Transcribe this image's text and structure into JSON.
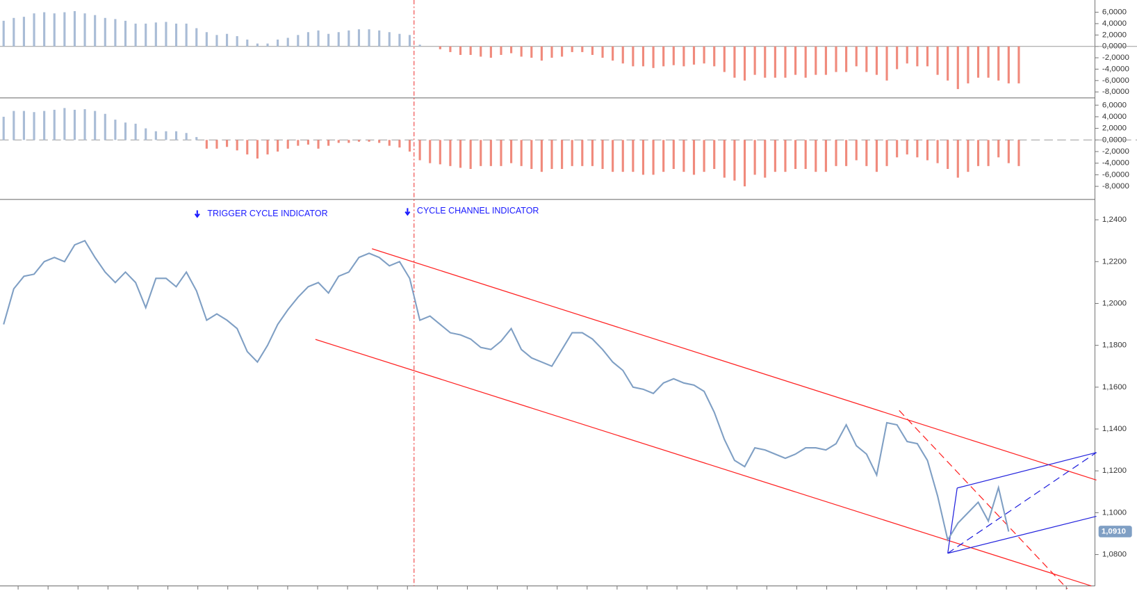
{
  "chart_data": [
    {
      "type": "bar",
      "color": "#a9bcd6",
      "negative_color": "#f08a7c",
      "zero_line": "solid",
      "ylim": [
        -9.05,
        8.15
      ],
      "yticks": [
        {
          "value": 6,
          "label": "6,0000"
        },
        {
          "value": 4,
          "label": "4,0000"
        },
        {
          "value": 2,
          "label": "2,0000"
        },
        {
          "value": 0,
          "label": "0,0000"
        },
        {
          "value": -2,
          "label": "-2,0000"
        },
        {
          "value": -4,
          "label": "-4,0000"
        },
        {
          "value": -6,
          "label": "-6,0000"
        },
        {
          "value": -8,
          "label": "-8,0000"
        }
      ],
      "values": [
        4.5,
        5,
        5.2,
        5.8,
        6,
        5.8,
        6,
        6.2,
        5.8,
        5.5,
        5,
        4.8,
        4.5,
        4,
        4,
        4.2,
        4.3,
        4,
        4,
        3.2,
        2.5,
        2,
        2.2,
        1.8,
        1.2,
        0.5,
        0.5,
        1.2,
        1.5,
        2,
        2.5,
        2.8,
        2.2,
        2.5,
        2.8,
        3,
        3,
        2.8,
        2.5,
        2.2,
        2,
        0.3,
        0,
        -0.5,
        -1,
        -1.5,
        -1.5,
        -1.8,
        -2,
        -1.5,
        -1.2,
        -1.8,
        -2,
        -2.5,
        -2,
        -1.8,
        -1,
        -1,
        -1.5,
        -2,
        -2.5,
        -3,
        -3.5,
        -3.5,
        -3.8,
        -3.5,
        -3.3,
        -3.5,
        -3.2,
        -3,
        -3.5,
        -4.5,
        -5.5,
        -6,
        -5,
        -5.5,
        -5.5,
        -5.5,
        -5,
        -5.5,
        -5,
        -5,
        -4.5,
        -4.5,
        -3.5,
        -4.5,
        -5,
        -6,
        -4,
        -3,
        -3.5,
        -3.5,
        -5,
        -6,
        -7.5,
        -6.5,
        -5.5,
        -5.5,
        -6,
        -6.5,
        -6.5
      ]
    },
    {
      "type": "bar",
      "color": "#a9bcd6",
      "negative_color": "#f08a7c",
      "zero_line": "dashed",
      "ylim": [
        -10.25,
        7
      ],
      "yticks": [
        {
          "value": 6,
          "label": "6,0000"
        },
        {
          "value": 4,
          "label": "4,0000"
        },
        {
          "value": 2,
          "label": "2,0000"
        },
        {
          "value": 0,
          "label": "0,0000"
        },
        {
          "value": -2,
          "label": "-2,0000"
        },
        {
          "value": -4,
          "label": "-4,0000"
        },
        {
          "value": -6,
          "label": "-6,0000"
        },
        {
          "value": -8,
          "label": "-8,0000"
        }
      ],
      "values": [
        4,
        5,
        5,
        4.8,
        5,
        5.2,
        5.5,
        5.2,
        5.3,
        5,
        4.5,
        3.5,
        3,
        2.8,
        2,
        1.5,
        1.5,
        1.5,
        1.2,
        0.5,
        -1.5,
        -1.5,
        -1.2,
        -1.8,
        -2.5,
        -3.2,
        -2.5,
        -2,
        -1.5,
        -1,
        -0.8,
        -1.5,
        -1,
        -0.5,
        -0.5,
        -0.3,
        -0.3,
        -0.5,
        -1,
        -1.3,
        -2,
        -3.5,
        -4,
        -4.2,
        -4.5,
        -4.8,
        -5,
        -4.5,
        -4.5,
        -4.5,
        -4,
        -4.5,
        -5,
        -5.5,
        -5,
        -5,
        -4.5,
        -4.5,
        -4.5,
        -5,
        -5.5,
        -5.5,
        -5.5,
        -6,
        -6,
        -5.5,
        -5,
        -5.5,
        -6,
        -5.5,
        -5,
        -6.5,
        -7,
        -8,
        -6,
        -6.5,
        -5.5,
        -5.5,
        -5,
        -5,
        -5.5,
        -5.5,
        -4.5,
        -4.5,
        -3.5,
        -4.5,
        -5.5,
        -4.5,
        -3,
        -2.5,
        -3,
        -3.5,
        -4,
        -5,
        -6.5,
        -5.5,
        -4.5,
        -4.5,
        -3,
        -4,
        -4.5
      ]
    },
    {
      "type": "line",
      "color": "#7f9fc4",
      "ylim": [
        1.065,
        1.248
      ],
      "yticks": [
        {
          "value": 1.24,
          "label": "1,2400"
        },
        {
          "value": 1.22,
          "label": "1,2200"
        },
        {
          "value": 1.2,
          "label": "1,2000"
        },
        {
          "value": 1.18,
          "label": "1,1800"
        },
        {
          "value": 1.16,
          "label": "1,1600"
        },
        {
          "value": 1.14,
          "label": "1,1400"
        },
        {
          "value": 1.12,
          "label": "1,1200"
        },
        {
          "value": 1.1,
          "label": "1,1000"
        },
        {
          "value": 1.08,
          "label": "1,0800"
        }
      ],
      "last_label": "1,0910",
      "annotations": [
        "TRIGGER CYCLE INDICATOR",
        "CYCLE CHANNEL INDICATOR"
      ],
      "values": [
        1.19,
        1.207,
        1.213,
        1.214,
        1.22,
        1.222,
        1.22,
        1.228,
        1.23,
        1.222,
        1.215,
        1.21,
        1.215,
        1.21,
        1.198,
        1.212,
        1.212,
        1.208,
        1.215,
        1.206,
        1.192,
        1.195,
        1.192,
        1.188,
        1.177,
        1.172,
        1.18,
        1.19,
        1.197,
        1.203,
        1.208,
        1.21,
        1.205,
        1.213,
        1.215,
        1.222,
        1.224,
        1.222,
        1.218,
        1.22,
        1.212,
        1.192,
        1.194,
        1.19,
        1.186,
        1.185,
        1.183,
        1.179,
        1.178,
        1.182,
        1.188,
        1.178,
        1.174,
        1.172,
        1.17,
        1.178,
        1.186,
        1.186,
        1.183,
        1.178,
        1.172,
        1.168,
        1.16,
        1.159,
        1.157,
        1.162,
        1.164,
        1.162,
        1.161,
        1.158,
        1.148,
        1.135,
        1.125,
        1.122,
        1.131,
        1.13,
        1.128,
        1.126,
        1.128,
        1.131,
        1.131,
        1.13,
        1.133,
        1.142,
        1.132,
        1.128,
        1.118,
        1.143,
        1.142,
        1.134,
        1.133,
        1.125,
        1.108,
        1.087,
        1.095,
        1.1,
        1.105,
        1.096,
        1.112,
        1.091
      ]
    }
  ]
}
